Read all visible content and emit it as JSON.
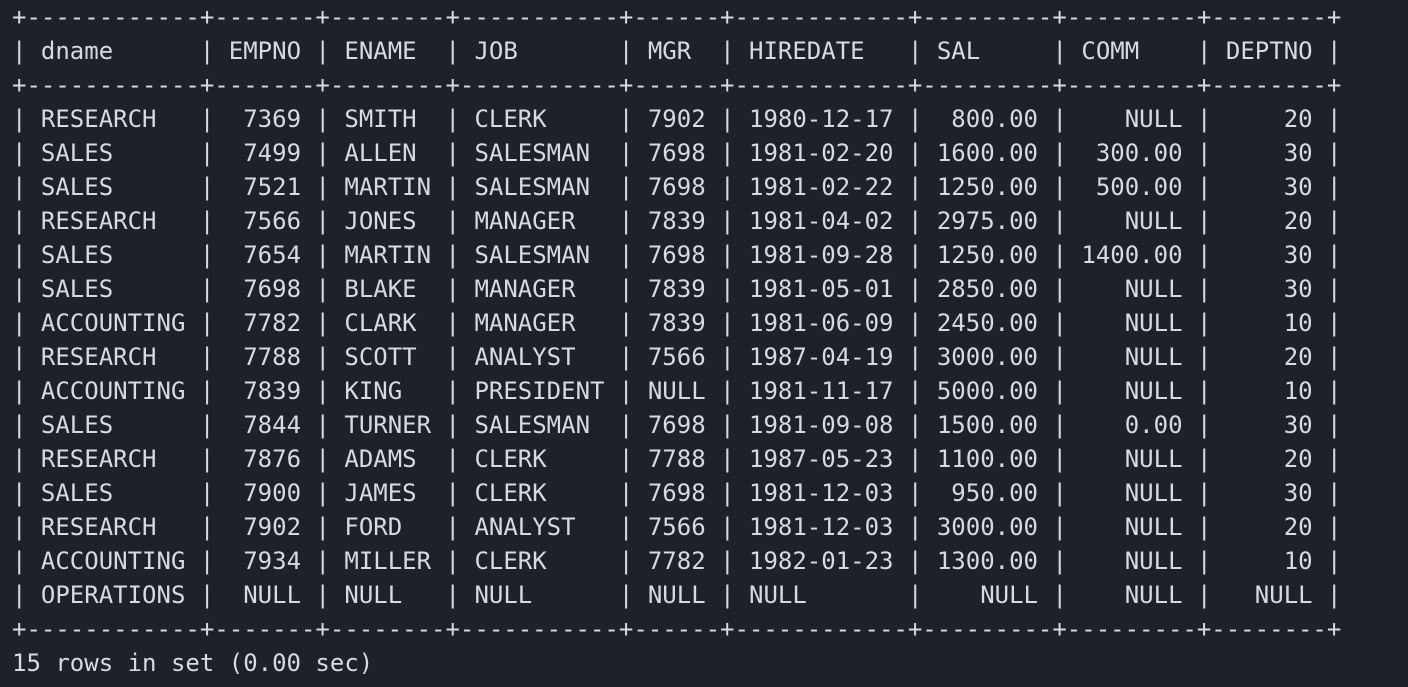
{
  "table": {
    "columns": [
      {
        "key": "dname",
        "label": "dname",
        "width": 10,
        "align": "left"
      },
      {
        "key": "empno",
        "label": "EMPNO",
        "width": 5,
        "align": "right"
      },
      {
        "key": "ename",
        "label": "ENAME",
        "width": 6,
        "align": "left"
      },
      {
        "key": "job",
        "label": "JOB",
        "width": 9,
        "align": "left"
      },
      {
        "key": "mgr",
        "label": "MGR",
        "width": 4,
        "align": "right"
      },
      {
        "key": "hiredate",
        "label": "HIREDATE",
        "width": 10,
        "align": "left"
      },
      {
        "key": "sal",
        "label": "SAL",
        "width": 7,
        "align": "right"
      },
      {
        "key": "comm",
        "label": "COMM",
        "width": 7,
        "align": "right"
      },
      {
        "key": "deptno",
        "label": "DEPTNO",
        "width": 6,
        "align": "right"
      }
    ],
    "rows": [
      [
        "RESEARCH",
        "7369",
        "SMITH",
        "CLERK",
        "7902",
        "1980-12-17",
        "800.00",
        "NULL",
        "20"
      ],
      [
        "SALES",
        "7499",
        "ALLEN",
        "SALESMAN",
        "7698",
        "1981-02-20",
        "1600.00",
        "300.00",
        "30"
      ],
      [
        "SALES",
        "7521",
        "MARTIN",
        "SALESMAN",
        "7698",
        "1981-02-22",
        "1250.00",
        "500.00",
        "30"
      ],
      [
        "RESEARCH",
        "7566",
        "JONES",
        "MANAGER",
        "7839",
        "1981-04-02",
        "2975.00",
        "NULL",
        "20"
      ],
      [
        "SALES",
        "7654",
        "MARTIN",
        "SALESMAN",
        "7698",
        "1981-09-28",
        "1250.00",
        "1400.00",
        "30"
      ],
      [
        "SALES",
        "7698",
        "BLAKE",
        "MANAGER",
        "7839",
        "1981-05-01",
        "2850.00",
        "NULL",
        "30"
      ],
      [
        "ACCOUNTING",
        "7782",
        "CLARK",
        "MANAGER",
        "7839",
        "1981-06-09",
        "2450.00",
        "NULL",
        "10"
      ],
      [
        "RESEARCH",
        "7788",
        "SCOTT",
        "ANALYST",
        "7566",
        "1987-04-19",
        "3000.00",
        "NULL",
        "20"
      ],
      [
        "ACCOUNTING",
        "7839",
        "KING",
        "PRESIDENT",
        "NULL",
        "1981-11-17",
        "5000.00",
        "NULL",
        "10"
      ],
      [
        "SALES",
        "7844",
        "TURNER",
        "SALESMAN",
        "7698",
        "1981-09-08",
        "1500.00",
        "0.00",
        "30"
      ],
      [
        "RESEARCH",
        "7876",
        "ADAMS",
        "CLERK",
        "7788",
        "1987-05-23",
        "1100.00",
        "NULL",
        "20"
      ],
      [
        "SALES",
        "7900",
        "JAMES",
        "CLERK",
        "7698",
        "1981-12-03",
        "950.00",
        "NULL",
        "30"
      ],
      [
        "RESEARCH",
        "7902",
        "FORD",
        "ANALYST",
        "7566",
        "1981-12-03",
        "3000.00",
        "NULL",
        "20"
      ],
      [
        "ACCOUNTING",
        "7934",
        "MILLER",
        "CLERK",
        "7782",
        "1982-01-23",
        "1300.00",
        "NULL",
        "10"
      ],
      [
        "OPERATIONS",
        "NULL",
        "NULL",
        "NULL",
        "NULL",
        "NULL",
        "NULL",
        "NULL",
        "NULL"
      ]
    ]
  },
  "status": "15 rows in set (0.00 sec)"
}
